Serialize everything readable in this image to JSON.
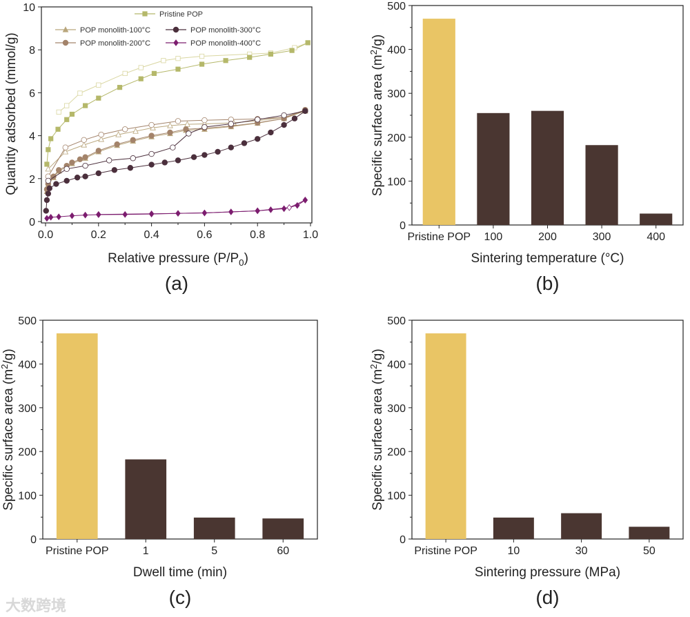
{
  "watermark": "大数跨境",
  "colors": {
    "gold": "#e9c565",
    "dark": "#4a3631"
  },
  "chart_data": [
    {
      "panel": "(a)",
      "type": "line",
      "xlabel": [
        "Relative pressure (P/P",
        "0",
        ")"
      ],
      "ylabel": "Quantity adsorbed (mmol/g)",
      "xlim": [
        0,
        1.0
      ],
      "ylim": [
        0,
        10
      ],
      "xticks": [
        "0.0",
        "0.2",
        "0.4",
        "0.6",
        "0.8",
        "1.0"
      ],
      "yticks": [
        "0",
        "2",
        "4",
        "6",
        "8",
        "10"
      ],
      "legend_position": "top",
      "series": [
        {
          "name": "Pristine POP",
          "color": "#b5b86a",
          "open_color": "#d9d6a0",
          "marker": "square",
          "adsorption": [
            [
              0.005,
              2.67
            ],
            [
              0.01,
              3.35
            ],
            [
              0.02,
              3.86
            ],
            [
              0.047,
              4.3
            ],
            [
              0.08,
              4.75
            ],
            [
              0.1,
              5.0
            ],
            [
              0.15,
              5.4
            ],
            [
              0.2,
              5.75
            ],
            [
              0.28,
              6.25
            ],
            [
              0.36,
              6.65
            ],
            [
              0.41,
              6.9
            ],
            [
              0.5,
              7.1
            ],
            [
              0.59,
              7.33
            ],
            [
              0.68,
              7.5
            ],
            [
              0.77,
              7.65
            ],
            [
              0.85,
              7.8
            ],
            [
              0.93,
              7.97
            ],
            [
              0.99,
              8.33
            ]
          ],
          "desorption": [
            [
              0.99,
              8.33
            ],
            [
              0.94,
              8.1
            ],
            [
              0.85,
              7.85
            ],
            [
              0.77,
              7.8
            ],
            [
              0.59,
              7.7
            ],
            [
              0.5,
              7.6
            ],
            [
              0.445,
              7.5
            ],
            [
              0.36,
              7.17
            ],
            [
              0.3,
              6.9
            ],
            [
              0.2,
              6.36
            ],
            [
              0.13,
              5.98
            ],
            [
              0.08,
              5.4
            ],
            [
              0.05,
              5.1
            ]
          ]
        },
        {
          "name": "POP monolith-100°C",
          "color": "#b9a67c",
          "marker": "triangle",
          "adsorption": [
            [
              0.005,
              1.4
            ],
            [
              0.01,
              1.7
            ],
            [
              0.03,
              2.05
            ],
            [
              0.05,
              2.35
            ],
            [
              0.08,
              2.55
            ],
            [
              0.1,
              2.7
            ],
            [
              0.15,
              2.95
            ],
            [
              0.2,
              3.25
            ],
            [
              0.27,
              3.55
            ],
            [
              0.33,
              3.75
            ],
            [
              0.4,
              3.95
            ],
            [
              0.47,
              4.1
            ],
            [
              0.53,
              4.25
            ],
            [
              0.6,
              4.3
            ],
            [
              0.7,
              4.42
            ],
            [
              0.8,
              4.58
            ],
            [
              0.9,
              4.8
            ],
            [
              0.98,
              5.15
            ]
          ],
          "desorption": [
            [
              0.98,
              5.15
            ],
            [
              0.9,
              4.85
            ],
            [
              0.8,
              4.7
            ],
            [
              0.71,
              4.6
            ],
            [
              0.6,
              4.55
            ],
            [
              0.535,
              4.53
            ],
            [
              0.47,
              4.47
            ],
            [
              0.405,
              4.37
            ],
            [
              0.34,
              4.21
            ],
            [
              0.275,
              4.05
            ],
            [
              0.21,
              3.83
            ],
            [
              0.145,
              3.57
            ],
            [
              0.075,
              3.25
            ],
            [
              0.01,
              2.45
            ]
          ]
        },
        {
          "name": "POP monolith-200°C",
          "color": "#a3836a",
          "marker": "circle",
          "adsorption": [
            [
              0.005,
              1.5
            ],
            [
              0.01,
              1.75
            ],
            [
              0.03,
              2.1
            ],
            [
              0.05,
              2.4
            ],
            [
              0.08,
              2.6
            ],
            [
              0.1,
              2.75
            ],
            [
              0.13,
              2.9
            ],
            [
              0.15,
              3.0
            ],
            [
              0.2,
              3.3
            ],
            [
              0.27,
              3.6
            ],
            [
              0.33,
              3.8
            ],
            [
              0.4,
              4.0
            ],
            [
              0.47,
              4.15
            ],
            [
              0.53,
              4.3
            ],
            [
              0.6,
              4.35
            ],
            [
              0.7,
              4.45
            ],
            [
              0.8,
              4.6
            ],
            [
              0.9,
              4.8
            ],
            [
              0.98,
              5.2
            ]
          ],
          "desorption": [
            [
              0.98,
              5.2
            ],
            [
              0.9,
              4.85
            ],
            [
              0.8,
              4.78
            ],
            [
              0.7,
              4.75
            ],
            [
              0.6,
              4.72
            ],
            [
              0.5,
              4.68
            ],
            [
              0.4,
              4.5
            ],
            [
              0.3,
              4.3
            ],
            [
              0.21,
              4.05
            ],
            [
              0.145,
              3.8
            ],
            [
              0.075,
              3.45
            ],
            [
              0.01,
              2.1
            ]
          ]
        },
        {
          "name": "POP monolith-300°C",
          "color": "#4b2f3c",
          "marker": "circle",
          "adsorption": [
            [
              0.002,
              0.5
            ],
            [
              0.005,
              1.0
            ],
            [
              0.01,
              1.3
            ],
            [
              0.015,
              1.55
            ],
            [
              0.04,
              1.75
            ],
            [
              0.08,
              1.9
            ],
            [
              0.12,
              2.05
            ],
            [
              0.15,
              2.1
            ],
            [
              0.2,
              2.25
            ],
            [
              0.26,
              2.4
            ],
            [
              0.32,
              2.5
            ],
            [
              0.4,
              2.65
            ],
            [
              0.45,
              2.75
            ],
            [
              0.5,
              2.85
            ],
            [
              0.56,
              3.0
            ],
            [
              0.6,
              3.1
            ],
            [
              0.65,
              3.25
            ],
            [
              0.7,
              3.45
            ],
            [
              0.75,
              3.65
            ],
            [
              0.8,
              3.85
            ],
            [
              0.85,
              4.15
            ],
            [
              0.9,
              4.5
            ],
            [
              0.94,
              4.8
            ],
            [
              0.98,
              5.15
            ]
          ],
          "desorption": [
            [
              0.98,
              5.15
            ],
            [
              0.9,
              4.95
            ],
            [
              0.8,
              4.75
            ],
            [
              0.7,
              4.55
            ],
            [
              0.6,
              4.4
            ],
            [
              0.54,
              4.1
            ],
            [
              0.48,
              3.45
            ],
            [
              0.4,
              3.15
            ],
            [
              0.33,
              2.95
            ],
            [
              0.24,
              2.85
            ],
            [
              0.15,
              2.6
            ],
            [
              0.08,
              2.45
            ],
            [
              0.01,
              1.9
            ]
          ]
        },
        {
          "name": "POP monolith-400°C",
          "color": "#7c1d6f",
          "marker": "diamond",
          "adsorption": [
            [
              0.005,
              0.15
            ],
            [
              0.02,
              0.2
            ],
            [
              0.05,
              0.22
            ],
            [
              0.1,
              0.27
            ],
            [
              0.15,
              0.3
            ],
            [
              0.2,
              0.32
            ],
            [
              0.3,
              0.33
            ],
            [
              0.4,
              0.35
            ],
            [
              0.5,
              0.38
            ],
            [
              0.6,
              0.4
            ],
            [
              0.7,
              0.45
            ],
            [
              0.8,
              0.5
            ],
            [
              0.85,
              0.55
            ],
            [
              0.9,
              0.6
            ],
            [
              0.95,
              0.75
            ],
            [
              0.98,
              1.0
            ]
          ],
          "desorption": [
            [
              0.98,
              1.0
            ],
            [
              0.92,
              0.65
            ],
            [
              0.8,
              0.5
            ],
            [
              0.6,
              0.4
            ],
            [
              0.4,
              0.36
            ],
            [
              0.2,
              0.33
            ]
          ]
        }
      ]
    },
    {
      "panel": "(b)",
      "type": "bar",
      "xlabel": "Sintering temperature (°C)",
      "ylabel": [
        "Specific surface area (m",
        "2",
        "/g)"
      ],
      "categories": [
        "Pristine POP",
        "100",
        "200",
        "300",
        "400"
      ],
      "values": [
        470,
        255,
        260,
        182,
        26
      ],
      "ylim": [
        0,
        500
      ],
      "yticks": [
        "0",
        "100",
        "200",
        "300",
        "400",
        "500"
      ]
    },
    {
      "panel": "(c)",
      "type": "bar",
      "xlabel": "Dwell time (min)",
      "ylabel": [
        "Specific surface area (m",
        "2",
        "/g)"
      ],
      "categories": [
        "Pristine POP",
        "1",
        "5",
        "60"
      ],
      "values": [
        470,
        182,
        49,
        47
      ],
      "ylim": [
        0,
        500
      ],
      "yticks": [
        "0",
        "100",
        "200",
        "300",
        "400",
        "500"
      ]
    },
    {
      "panel": "(d)",
      "type": "bar",
      "xlabel": "Sintering pressure (MPa)",
      "ylabel": [
        "Specific surface area (m",
        "2",
        "/g)"
      ],
      "categories": [
        "Pristine POP",
        "10",
        "30",
        "50"
      ],
      "values": [
        470,
        49,
        59,
        28
      ],
      "ylim": [
        0,
        500
      ],
      "yticks": [
        "0",
        "100",
        "200",
        "300",
        "400",
        "500"
      ]
    }
  ]
}
